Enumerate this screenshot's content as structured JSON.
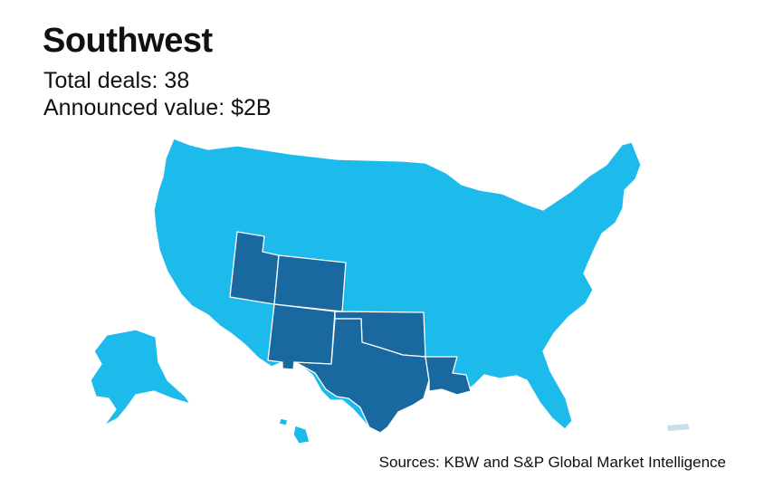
{
  "header": {
    "title": "Southwest",
    "total_deals": "Total deals: 38",
    "announced_value": "Announced value: $2B"
  },
  "map": {
    "region": "Southwest",
    "colors": {
      "highlight": "#1a68a0",
      "other": "#1cbbec",
      "puerto_rico": "#c9dfea",
      "border": "#ffffff"
    },
    "highlighted_states": [
      "UT",
      "CO",
      "NM",
      "OK",
      "TX",
      "LA"
    ]
  },
  "footer": {
    "source": "Sources: KBW and S&P Global Market Intelligence"
  }
}
